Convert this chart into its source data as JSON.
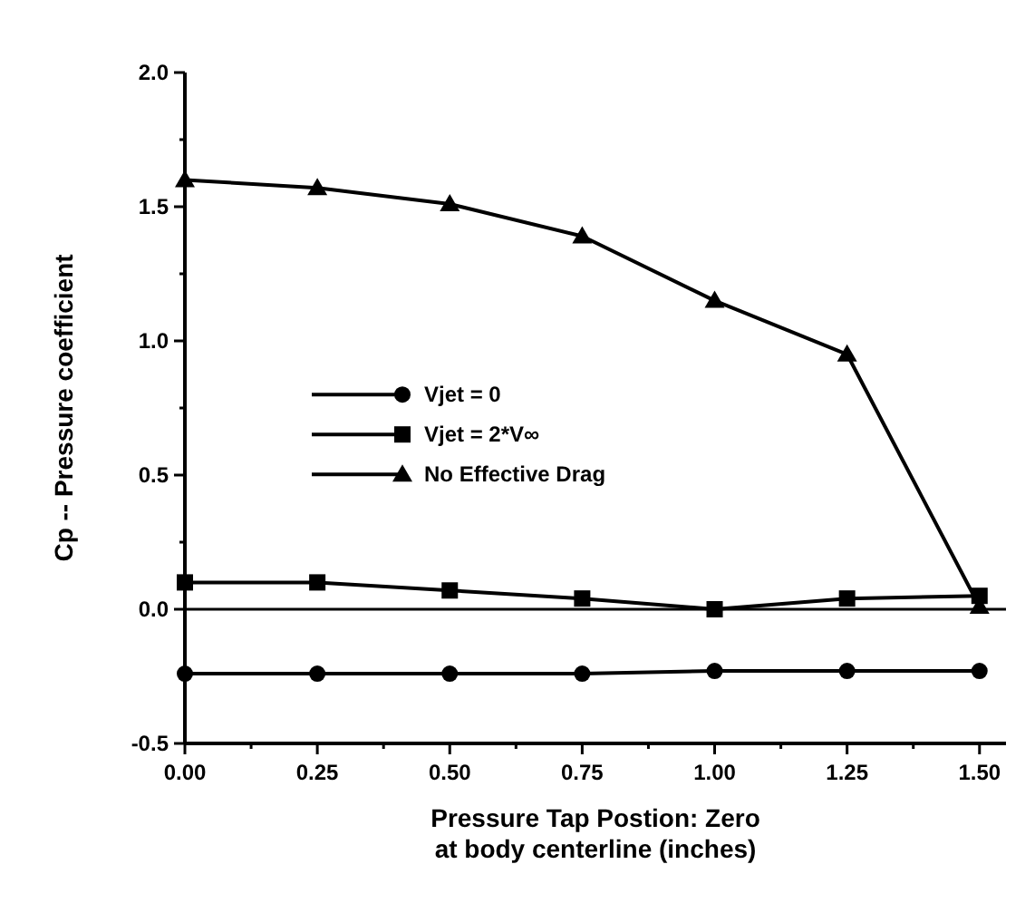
{
  "chart_data": {
    "type": "line",
    "xlabel": "Pressure Tap Postion:  Zero at body centerline (inches)",
    "ylabel": "Cp -- Pressure coefficient",
    "x": [
      0,
      0.25,
      0.5,
      0.75,
      1.0,
      1.25,
      1.5
    ],
    "series": [
      {
        "name": "Vjet = 0",
        "color": "#000000",
        "marker": "circle",
        "values": [
          -0.24,
          -0.24,
          -0.24,
          -0.24,
          -0.23,
          -0.23,
          -0.23
        ]
      },
      {
        "name": "Vjet = 2*V∞",
        "color": "#000000",
        "marker": "square",
        "values": [
          0.1,
          0.1,
          0.07,
          0.04,
          0.0,
          0.04,
          0.05
        ]
      },
      {
        "name": "No Effective Drag",
        "color": "#000000",
        "marker": "triangle",
        "values": [
          1.6,
          1.57,
          1.51,
          1.39,
          1.15,
          0.95,
          0.01
        ]
      }
    ],
    "xlim": [
      0,
      1.55
    ],
    "ylim": [
      -0.5,
      2.0
    ],
    "xticks": [
      {
        "value": 0,
        "label": "0.00"
      },
      {
        "value": 0.125,
        "label": null
      },
      {
        "value": 0.25,
        "label": "0.25"
      },
      {
        "value": 0.375,
        "label": null
      },
      {
        "value": 0.5,
        "label": "0.50"
      },
      {
        "value": 0.625,
        "label": null
      },
      {
        "value": 0.75,
        "label": "0.75"
      },
      {
        "value": 0.875,
        "label": null
      },
      {
        "value": 1.0,
        "label": "1.00"
      },
      {
        "value": 1.125,
        "label": null
      },
      {
        "value": 1.25,
        "label": "1.25"
      },
      {
        "value": 1.375,
        "label": null
      },
      {
        "value": 1.5,
        "label": "1.50"
      }
    ],
    "yticks": [
      {
        "value": -0.5,
        "label": "-0.5"
      },
      {
        "value": -0.25,
        "label": null
      },
      {
        "value": 0,
        "label": "0.0"
      },
      {
        "value": 0.25,
        "label": null
      },
      {
        "value": 0.5,
        "label": "0.5"
      },
      {
        "value": 0.75,
        "label": null
      },
      {
        "value": 1.0,
        "label": "1.0"
      },
      {
        "value": 1.25,
        "label": null
      },
      {
        "value": 1.5,
        "label": "1.5"
      },
      {
        "value": 1.75,
        "label": null
      },
      {
        "value": 2.0,
        "label": "2.0"
      }
    ],
    "ref_lines": [
      {
        "axis": "y",
        "value": 0,
        "color": "#000000"
      }
    ],
    "grid": false,
    "legend": "center"
  }
}
